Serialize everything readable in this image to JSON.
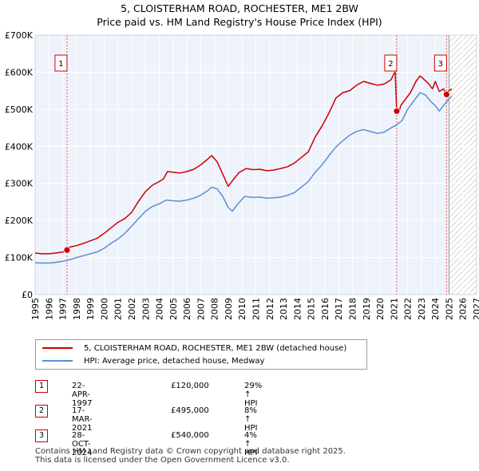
{
  "header": {
    "line1": "5, CLOISTERHAM ROAD, ROCHESTER, ME1 2BW",
    "line2": "Price paid vs. HM Land Registry's House Price Index (HPI)"
  },
  "chart_data": {
    "type": "line",
    "title": "5, CLOISTERHAM ROAD, ROCHESTER, ME1 2BW — Price paid vs. HM Land Registry's House Price Index (HPI)",
    "xlim": [
      1995,
      2027
    ],
    "ylim": [
      0,
      700000
    ],
    "x_ticks": [
      1995,
      1996,
      1997,
      1998,
      1999,
      2000,
      2001,
      2002,
      2003,
      2004,
      2005,
      2006,
      2007,
      2008,
      2009,
      2010,
      2011,
      2012,
      2013,
      2014,
      2015,
      2016,
      2017,
      2018,
      2019,
      2020,
      2021,
      2022,
      2023,
      2024,
      2025,
      2026,
      2027
    ],
    "y_ticks": [
      0,
      100000,
      200000,
      300000,
      400000,
      500000,
      600000,
      700000
    ],
    "y_tick_labels": [
      "£0",
      "£100K",
      "£200K",
      "£300K",
      "£400K",
      "£500K",
      "£600K",
      "£700K"
    ],
    "future_from": 2025.0,
    "series": [
      {
        "name": "5, CLOISTERHAM ROAD, ROCHESTER, ME1 2BW (detached house)",
        "color": "#cc0000",
        "points": [
          [
            1995.0,
            112000
          ],
          [
            1995.5,
            110000
          ],
          [
            1996.0,
            110000
          ],
          [
            1996.5,
            112000
          ],
          [
            1997.0,
            115000
          ],
          [
            1997.31,
            120000
          ],
          [
            1997.5,
            128000
          ],
          [
            1998.0,
            132000
          ],
          [
            1998.5,
            138000
          ],
          [
            1999.0,
            145000
          ],
          [
            1999.5,
            152000
          ],
          [
            2000.0,
            165000
          ],
          [
            2000.5,
            180000
          ],
          [
            2001.0,
            195000
          ],
          [
            2001.5,
            205000
          ],
          [
            2002.0,
            222000
          ],
          [
            2002.5,
            252000
          ],
          [
            2003.0,
            278000
          ],
          [
            2003.5,
            295000
          ],
          [
            2004.0,
            305000
          ],
          [
            2004.3,
            312000
          ],
          [
            2004.6,
            332000
          ],
          [
            2005.0,
            330000
          ],
          [
            2005.5,
            328000
          ],
          [
            2006.0,
            332000
          ],
          [
            2006.5,
            338000
          ],
          [
            2007.0,
            350000
          ],
          [
            2007.5,
            365000
          ],
          [
            2007.8,
            375000
          ],
          [
            2008.2,
            358000
          ],
          [
            2008.6,
            325000
          ],
          [
            2009.0,
            292000
          ],
          [
            2009.4,
            312000
          ],
          [
            2009.8,
            330000
          ],
          [
            2010.3,
            340000
          ],
          [
            2010.8,
            337000
          ],
          [
            2011.3,
            338000
          ],
          [
            2011.8,
            334000
          ],
          [
            2012.3,
            336000
          ],
          [
            2012.8,
            340000
          ],
          [
            2013.3,
            345000
          ],
          [
            2013.8,
            355000
          ],
          [
            2014.3,
            370000
          ],
          [
            2014.8,
            385000
          ],
          [
            2015.3,
            425000
          ],
          [
            2015.8,
            455000
          ],
          [
            2016.3,
            490000
          ],
          [
            2016.8,
            530000
          ],
          [
            2017.3,
            545000
          ],
          [
            2017.8,
            550000
          ],
          [
            2018.3,
            565000
          ],
          [
            2018.8,
            575000
          ],
          [
            2019.3,
            570000
          ],
          [
            2019.8,
            565000
          ],
          [
            2020.3,
            568000
          ],
          [
            2020.8,
            580000
          ],
          [
            2021.0,
            595000
          ],
          [
            2021.1,
            600000
          ],
          [
            2021.21,
            495000
          ],
          [
            2021.35,
            490000
          ],
          [
            2021.5,
            510000
          ],
          [
            2021.8,
            525000
          ],
          [
            2022.2,
            545000
          ],
          [
            2022.6,
            575000
          ],
          [
            2022.9,
            590000
          ],
          [
            2023.2,
            580000
          ],
          [
            2023.5,
            570000
          ],
          [
            2023.8,
            555000
          ],
          [
            2024.0,
            575000
          ],
          [
            2024.3,
            548000
          ],
          [
            2024.6,
            555000
          ],
          [
            2024.82,
            540000
          ],
          [
            2025.0,
            550000
          ],
          [
            2025.2,
            555000
          ]
        ]
      },
      {
        "name": "HPI: Average price, detached house, Medway",
        "color": "#5b8fce",
        "points": [
          [
            1995.0,
            86000
          ],
          [
            1995.5,
            85000
          ],
          [
            1996.0,
            85000
          ],
          [
            1996.5,
            87000
          ],
          [
            1997.0,
            90000
          ],
          [
            1997.5,
            94000
          ],
          [
            1998.0,
            100000
          ],
          [
            1998.5,
            105000
          ],
          [
            1999.0,
            110000
          ],
          [
            1999.5,
            115000
          ],
          [
            2000.0,
            125000
          ],
          [
            2000.5,
            138000
          ],
          [
            2001.0,
            150000
          ],
          [
            2001.5,
            165000
          ],
          [
            2002.0,
            185000
          ],
          [
            2002.5,
            205000
          ],
          [
            2003.0,
            225000
          ],
          [
            2003.5,
            238000
          ],
          [
            2004.0,
            245000
          ],
          [
            2004.5,
            255000
          ],
          [
            2005.0,
            253000
          ],
          [
            2005.5,
            252000
          ],
          [
            2006.0,
            255000
          ],
          [
            2006.5,
            260000
          ],
          [
            2007.0,
            268000
          ],
          [
            2007.5,
            280000
          ],
          [
            2007.8,
            290000
          ],
          [
            2008.2,
            285000
          ],
          [
            2008.6,
            265000
          ],
          [
            2009.0,
            235000
          ],
          [
            2009.3,
            225000
          ],
          [
            2009.7,
            245000
          ],
          [
            2010.2,
            265000
          ],
          [
            2010.8,
            262000
          ],
          [
            2011.3,
            263000
          ],
          [
            2011.8,
            260000
          ],
          [
            2012.3,
            261000
          ],
          [
            2012.8,
            263000
          ],
          [
            2013.3,
            268000
          ],
          [
            2013.8,
            275000
          ],
          [
            2014.3,
            290000
          ],
          [
            2014.8,
            305000
          ],
          [
            2015.3,
            330000
          ],
          [
            2015.8,
            350000
          ],
          [
            2016.3,
            375000
          ],
          [
            2016.8,
            398000
          ],
          [
            2017.3,
            415000
          ],
          [
            2017.8,
            430000
          ],
          [
            2018.3,
            440000
          ],
          [
            2018.8,
            445000
          ],
          [
            2019.3,
            440000
          ],
          [
            2019.8,
            435000
          ],
          [
            2020.3,
            438000
          ],
          [
            2020.8,
            450000
          ],
          [
            2021.21,
            458000
          ],
          [
            2021.6,
            470000
          ],
          [
            2022.0,
            500000
          ],
          [
            2022.5,
            525000
          ],
          [
            2022.9,
            545000
          ],
          [
            2023.3,
            538000
          ],
          [
            2023.7,
            520000
          ],
          [
            2024.0,
            510000
          ],
          [
            2024.3,
            495000
          ],
          [
            2024.6,
            510000
          ],
          [
            2024.82,
            520000
          ],
          [
            2025.0,
            528000
          ],
          [
            2025.2,
            535000
          ]
        ]
      }
    ],
    "sales": [
      {
        "id": "1",
        "x": 1997.31,
        "y": 120000,
        "date": "22-APR-1997",
        "price": "£120,000",
        "hpi": "29% ↑ HPI"
      },
      {
        "id": "2",
        "x": 2021.21,
        "y": 495000,
        "date": "17-MAR-2021",
        "price": "£495,000",
        "hpi": "8% ↑ HPI"
      },
      {
        "id": "3",
        "x": 2024.82,
        "y": 540000,
        "date": "28-OCT-2024",
        "price": "£540,000",
        "hpi": "4% ↑ HPI"
      }
    ]
  },
  "legend": {
    "series1": "5, CLOISTERHAM ROAD, ROCHESTER, ME1 2BW (detached house)",
    "series2": "HPI: Average price, detached house, Medway"
  },
  "footer": {
    "line1": "Contains HM Land Registry data © Crown copyright and database right 2025.",
    "line2": "This data is licensed under the Open Government Licence v3.0."
  },
  "colors": {
    "price_line": "#cc0000",
    "hpi_line": "#5b8fce",
    "sale_marker": "#cc0000",
    "sale_vline": "#e06060",
    "plot_bg": "#eef2fb",
    "grid": "#ffffff"
  }
}
